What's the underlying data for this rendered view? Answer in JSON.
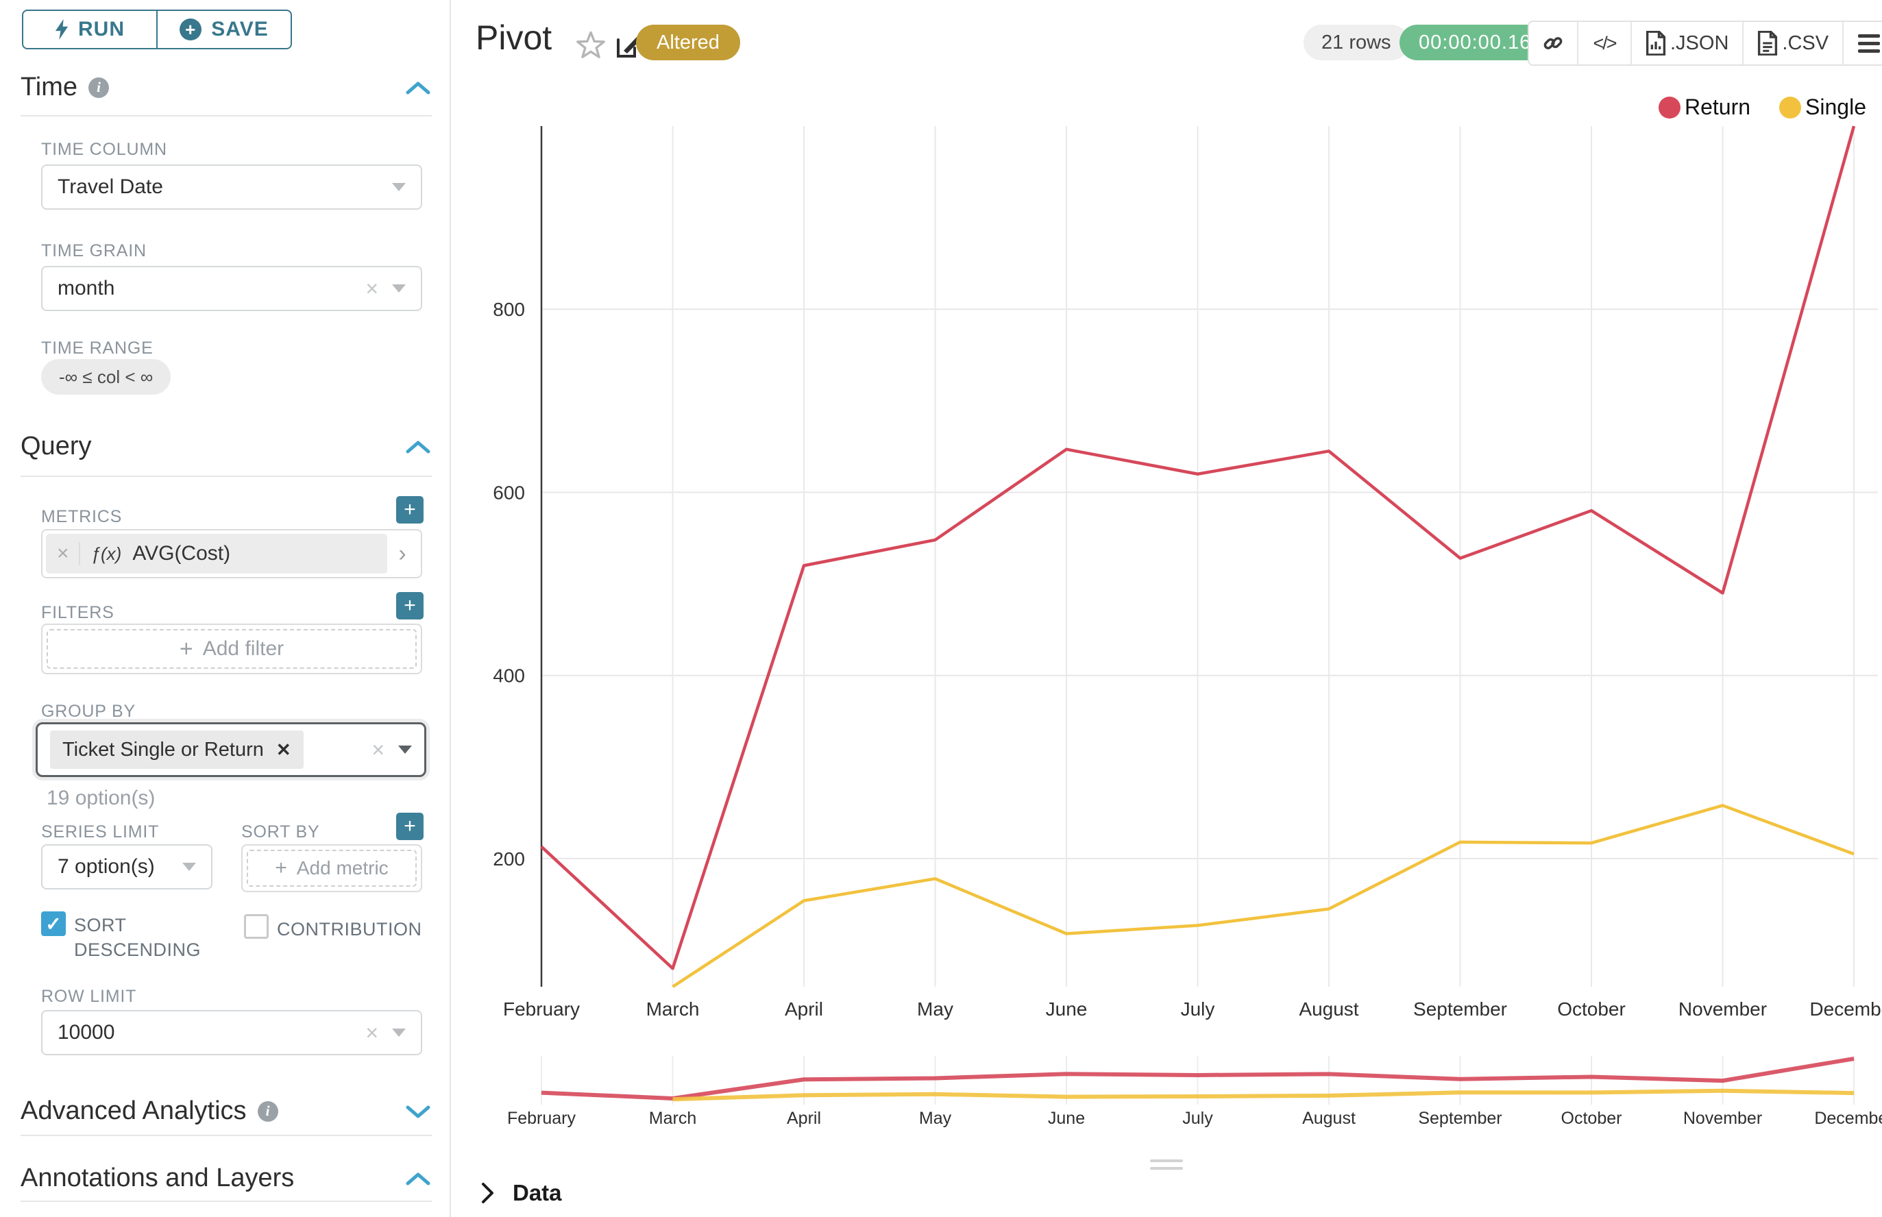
{
  "toolbar": {
    "run_label": "RUN",
    "save_label": "SAVE"
  },
  "sidebar": {
    "time": {
      "title": "Time",
      "time_column_label": "TIME COLUMN",
      "time_column_value": "Travel Date",
      "time_grain_label": "TIME GRAIN",
      "time_grain_value": "month",
      "time_range_label": "TIME RANGE",
      "time_range_value": "-∞ ≤ col < ∞"
    },
    "query": {
      "title": "Query",
      "metrics_label": "METRICS",
      "metric_fx": "ƒ(x)",
      "metric_value": "AVG(Cost)",
      "filters_label": "FILTERS",
      "add_filter_label": "Add filter",
      "group_by_label": "GROUP BY",
      "group_by_tag": "Ticket Single or Return",
      "group_by_hint": "19 option(s)",
      "series_limit_label": "SERIES LIMIT",
      "series_limit_value": "7 option(s)",
      "sort_by_label": "SORT BY",
      "add_metric_label": "Add metric",
      "sort_descending_label": "SORT DESCENDING",
      "contribution_label": "CONTRIBUTION",
      "row_limit_label": "ROW LIMIT",
      "row_limit_value": "10000"
    },
    "advanced_analytics": {
      "title": "Advanced Analytics"
    },
    "annotations": {
      "title": "Annotations and Layers"
    }
  },
  "header": {
    "title": "Pivot",
    "badge": "Altered",
    "rows": "21 rows",
    "timer": "00:00:00.16",
    "json_label": ".JSON",
    "csv_label": ".CSV"
  },
  "chart_data": {
    "type": "line",
    "title": "",
    "xlabel": "",
    "ylabel": "",
    "categories": [
      "February",
      "March",
      "April",
      "May",
      "June",
      "July",
      "August",
      "September",
      "October",
      "November",
      "December"
    ],
    "series": [
      {
        "name": "Return",
        "color": "#D6485A",
        "values": [
          213,
          80,
          520,
          548,
          647,
          620,
          645,
          528,
          580,
          490,
          1000
        ]
      },
      {
        "name": "Single",
        "color": "#F2C23E",
        "values": [
          null,
          60,
          154,
          178,
          118,
          127,
          145,
          218,
          217,
          258,
          205
        ]
      }
    ],
    "yticks": [
      200,
      400,
      600,
      800
    ],
    "ylim": [
      60,
      1000
    ],
    "context_ylim": [
      0,
      1000
    ],
    "grid": true,
    "legend_position": "top-right",
    "has_context_brush_chart": true
  },
  "data_panel": {
    "title": "Data"
  }
}
